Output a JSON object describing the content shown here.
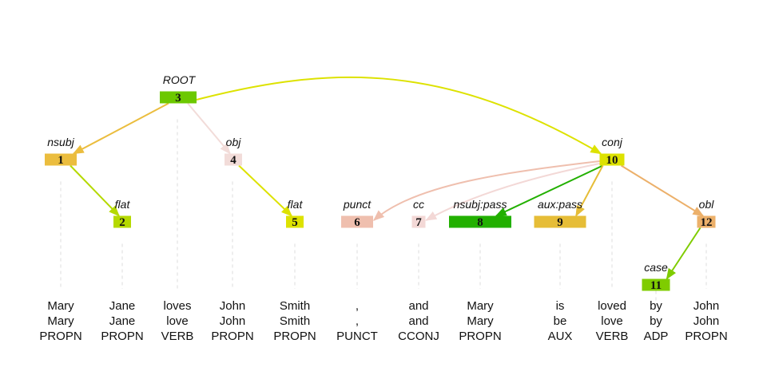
{
  "tokens": [
    {
      "id": "1",
      "form": "Mary",
      "lemma": "Mary",
      "upos": "PROPN",
      "head": 3,
      "deprel": "nsubj",
      "color": "#ebbd3e"
    },
    {
      "id": "2",
      "form": "Jane",
      "lemma": "Jane",
      "upos": "PROPN",
      "head": 1,
      "deprel": "flat",
      "color": "#b5d900"
    },
    {
      "id": "3",
      "form": "loves",
      "lemma": "love",
      "upos": "VERB",
      "head": 0,
      "deprel": "ROOT",
      "color": "#6cc800"
    },
    {
      "id": "4",
      "form": "John",
      "lemma": "John",
      "upos": "PROPN",
      "head": 3,
      "deprel": "obj",
      "color": "#f2dcd9"
    },
    {
      "id": "5",
      "form": "Smith",
      "lemma": "Smith",
      "upos": "PROPN",
      "head": 4,
      "deprel": "flat",
      "color": "#dde200"
    },
    {
      "id": "6",
      "form": ",",
      "lemma": ",",
      "upos": "PUNCT",
      "head": 10,
      "deprel": "punct",
      "color": "#efbfae"
    },
    {
      "id": "7",
      "form": "and",
      "lemma": "and",
      "upos": "CCONJ",
      "head": 10,
      "deprel": "cc",
      "color": "#f3d8d6"
    },
    {
      "id": "8",
      "form": "Mary",
      "lemma": "Mary",
      "upos": "PROPN",
      "head": 10,
      "deprel": "nsubj:pass",
      "color": "#22b000"
    },
    {
      "id": "9",
      "form": "is",
      "lemma": "be",
      "upos": "AUX",
      "head": 10,
      "deprel": "aux:pass",
      "color": "#e6bd37"
    },
    {
      "id": "10",
      "form": "loved",
      "lemma": "love",
      "upos": "VERB",
      "head": 3,
      "deprel": "conj",
      "color": "#dde200"
    },
    {
      "id": "11",
      "form": "by",
      "lemma": "by",
      "upos": "ADP",
      "head": 12,
      "deprel": "case",
      "color": "#7fcc00"
    },
    {
      "id": "12",
      "form": "John",
      "lemma": "John",
      "upos": "PROPN",
      "head": 10,
      "deprel": "obl",
      "color": "#ecb06a"
    }
  ]
}
